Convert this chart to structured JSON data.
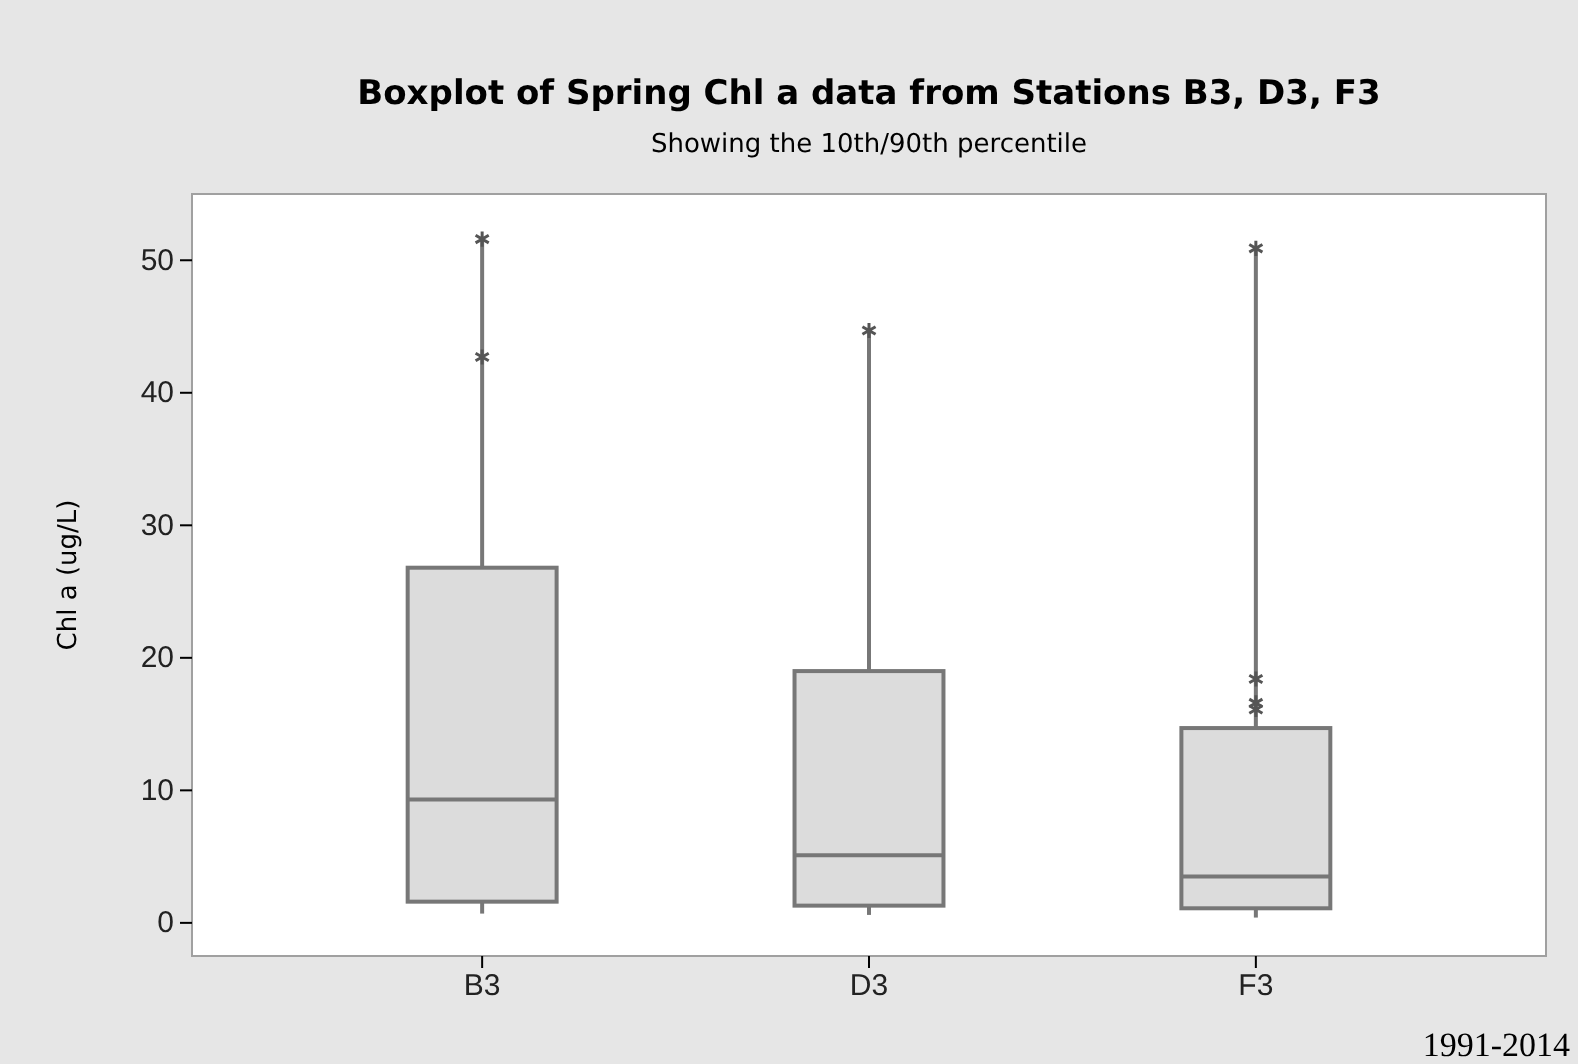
{
  "chart_data": {
    "type": "box",
    "title": "Boxplot of Spring Chl a data from Stations B3, D3, F3",
    "subtitle": "Showing the 10th/90th percentile",
    "ylabel": "Chl a (ug/L)",
    "categories": [
      "B3",
      "D3",
      "F3"
    ],
    "color": "#dcdcdc",
    "boxes": [
      {
        "low": 0.7,
        "q1": 1.6,
        "median": 9.3,
        "q3": 26.8,
        "high": 51.6,
        "outliers": [
          42.7,
          51.6
        ]
      },
      {
        "low": 0.6,
        "q1": 1.3,
        "median": 5.1,
        "q3": 19.0,
        "high": 44.7,
        "outliers": [
          44.7
        ]
      },
      {
        "low": 0.4,
        "q1": 1.1,
        "median": 3.5,
        "q3": 14.7,
        "high": 50.9,
        "outliers": [
          16.1,
          16.6,
          18.4,
          50.9
        ]
      }
    ],
    "ylim": [
      -2.5,
      55
    ],
    "yticks": [
      0,
      10,
      20,
      30,
      40,
      50
    ],
    "grid": false,
    "annotations": [
      "1991-2014"
    ]
  }
}
